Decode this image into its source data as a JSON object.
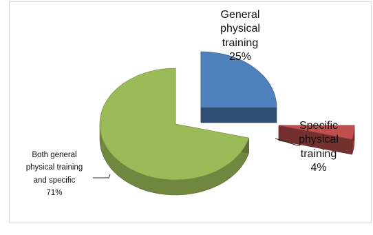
{
  "chart_data": {
    "type": "pie",
    "title": "",
    "style": "3d-exploded",
    "slices": [
      {
        "name": "General physical training",
        "value": 25,
        "label_lines": [
          "General",
          "physical",
          "training",
          "25%"
        ],
        "color": "#4f81bd"
      },
      {
        "name": "Specific physical training",
        "value": 4,
        "label_lines": [
          "Specific",
          "physical",
          "training",
          "4%"
        ],
        "color": "#c0504d"
      },
      {
        "name": "Both general physical training and specific",
        "value": 71,
        "label_lines": [
          "Both general",
          "physical training",
          "and specific",
          "71%"
        ],
        "color": "#9bbb59"
      }
    ],
    "legend": "none"
  }
}
